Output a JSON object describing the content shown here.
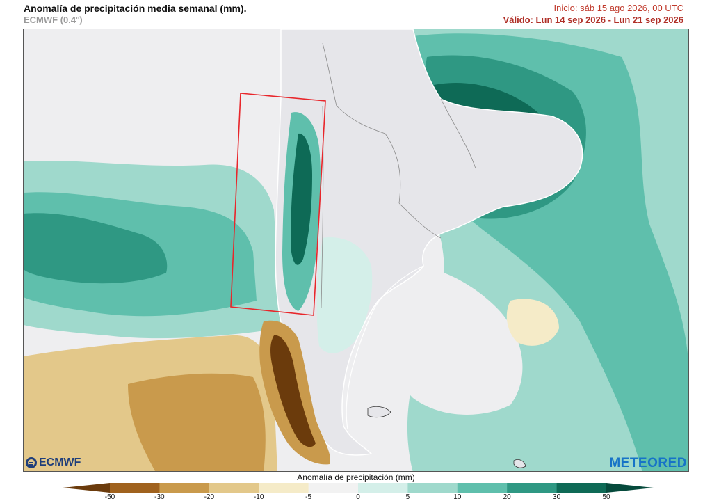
{
  "header": {
    "title": "Anomalía de precipitación media semanal (mm).",
    "model": "ECMWF (0.4°)",
    "init": "Inicio:  sáb 15 ago 2026, 00 UTC",
    "valid": "Válido: Lun 14 sep 2026 - Lun 21 sep 2026"
  },
  "logos": {
    "left": "ECMWF",
    "right": "METEORED"
  },
  "colorbar": {
    "label": "Anomalía de precipitación (mm)",
    "ticks": [
      "-50",
      "-30",
      "-20",
      "-10",
      "-5",
      "0",
      "5",
      "10",
      "20",
      "30",
      "50"
    ],
    "colors": [
      "#6b3b0c",
      "#a0621e",
      "#c99a4c",
      "#e3c88a",
      "#f5ebc8",
      "#f2f2f2",
      "#d4efe9",
      "#9fd9cc",
      "#5fbfac",
      "#2f9883",
      "#0e6a56",
      "#064a3c"
    ]
  },
  "colors": {
    "highlight_box": "#e8262b",
    "land_outline": "#ffffff",
    "borders": "#8a8a8a"
  }
}
